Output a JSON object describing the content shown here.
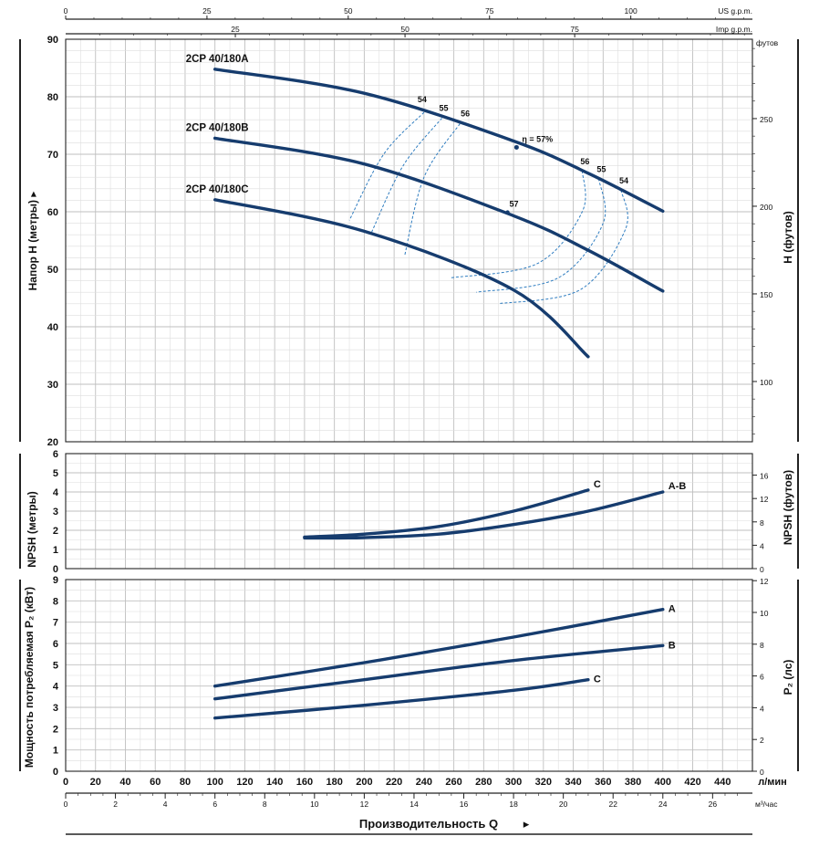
{
  "top_scales": {
    "us_gpm": {
      "unit": "US g.p.m.",
      "ticks": [
        0,
        25,
        50,
        75,
        100
      ]
    },
    "imp_gpm": {
      "unit": "Imp g.p.m.",
      "ticks": [
        25,
        50,
        75
      ]
    },
    "feet_unit": "футов"
  },
  "bottom_scales": {
    "lpm": {
      "unit": "л/мин",
      "ticks": [
        0,
        20,
        40,
        60,
        80,
        100,
        120,
        140,
        160,
        180,
        200,
        220,
        240,
        260,
        280,
        300,
        320,
        340,
        360,
        380,
        400,
        420,
        440
      ]
    },
    "m3h": {
      "unit": "м³/час",
      "ticks": [
        0,
        2,
        4,
        6,
        8,
        10,
        12,
        14,
        16,
        18,
        20,
        22,
        24,
        26
      ]
    },
    "title": "Производительность Q",
    "arrow": "▸"
  },
  "chart_data": [
    {
      "id": "head",
      "type": "line",
      "ylabel": "Напор H",
      "ylabel_unit": "(метры)",
      "ylabel_arrow": "▸",
      "ylabel_right": "H (футов)",
      "xlim": [
        0,
        460
      ],
      "ylim": [
        20,
        90
      ],
      "yticks": [
        20,
        30,
        40,
        50,
        60,
        70,
        80,
        90
      ],
      "yticks_right": [
        100,
        150,
        200,
        250
      ],
      "series": [
        {
          "name": "2CP 40/180A",
          "x": [
            100,
            200,
            300,
            350,
            400
          ],
          "y": [
            84.8,
            80.6,
            72.3,
            66.7,
            60.1
          ]
        },
        {
          "name": "2CP 40/180B",
          "x": [
            100,
            200,
            300,
            350,
            400
          ],
          "y": [
            72.8,
            68.3,
            59.3,
            53.3,
            46.2
          ]
        },
        {
          "name": "2CP 40/180C",
          "x": [
            100,
            200,
            300,
            350
          ],
          "y": [
            62.1,
            56.6,
            46.4,
            34.8
          ]
        }
      ],
      "efficiency": {
        "annotation": "η = 57%",
        "at": [
          302,
          71.2
        ],
        "point_57": {
          "label": "57",
          "x": 296,
          "y": 59.9
        },
        "labels_left": [
          "54",
          "55",
          "56"
        ],
        "labels_right": [
          "56",
          "55",
          "54"
        ]
      }
    },
    {
      "id": "npsh",
      "type": "line",
      "ylabel": "NPSH (метры)",
      "ylabel_right": "NPSH (футов)",
      "xlim": [
        0,
        460
      ],
      "ylim": [
        0,
        6
      ],
      "yticks": [
        0,
        1,
        2,
        3,
        4,
        5,
        6
      ],
      "yticks_right": [
        0,
        4,
        8,
        12,
        16
      ],
      "series": [
        {
          "name": "C",
          "x": [
            160,
            200,
            250,
            300,
            350
          ],
          "y": [
            1.65,
            1.8,
            2.2,
            3.0,
            4.1
          ]
        },
        {
          "name": "A-B",
          "x": [
            160,
            200,
            250,
            300,
            350,
            400
          ],
          "y": [
            1.6,
            1.62,
            1.8,
            2.3,
            3.0,
            4.0
          ]
        }
      ]
    },
    {
      "id": "power",
      "type": "line",
      "ylabel": "Мощность потребляемая P₂ (кВт)",
      "ylabel_right": "P₂ (лс)",
      "xlim": [
        0,
        460
      ],
      "ylim": [
        0,
        9
      ],
      "yticks": [
        0,
        1,
        2,
        3,
        4,
        5,
        6,
        7,
        8,
        9
      ],
      "yticks_right": [
        0,
        2,
        4,
        6,
        8,
        10,
        12
      ],
      "series": [
        {
          "name": "A",
          "x": [
            100,
            200,
            300,
            400
          ],
          "y": [
            4.0,
            5.1,
            6.3,
            7.6
          ]
        },
        {
          "name": "B",
          "x": [
            100,
            200,
            300,
            400
          ],
          "y": [
            3.4,
            4.3,
            5.2,
            5.9
          ]
        },
        {
          "name": "C",
          "x": [
            100,
            200,
            300,
            350
          ],
          "y": [
            2.5,
            3.1,
            3.8,
            4.3
          ]
        }
      ]
    }
  ],
  "colors": {
    "curve": "#163c6e",
    "efficiency": "#2f7dc0",
    "grid": "#c9c9c9",
    "frame": "#222222"
  }
}
